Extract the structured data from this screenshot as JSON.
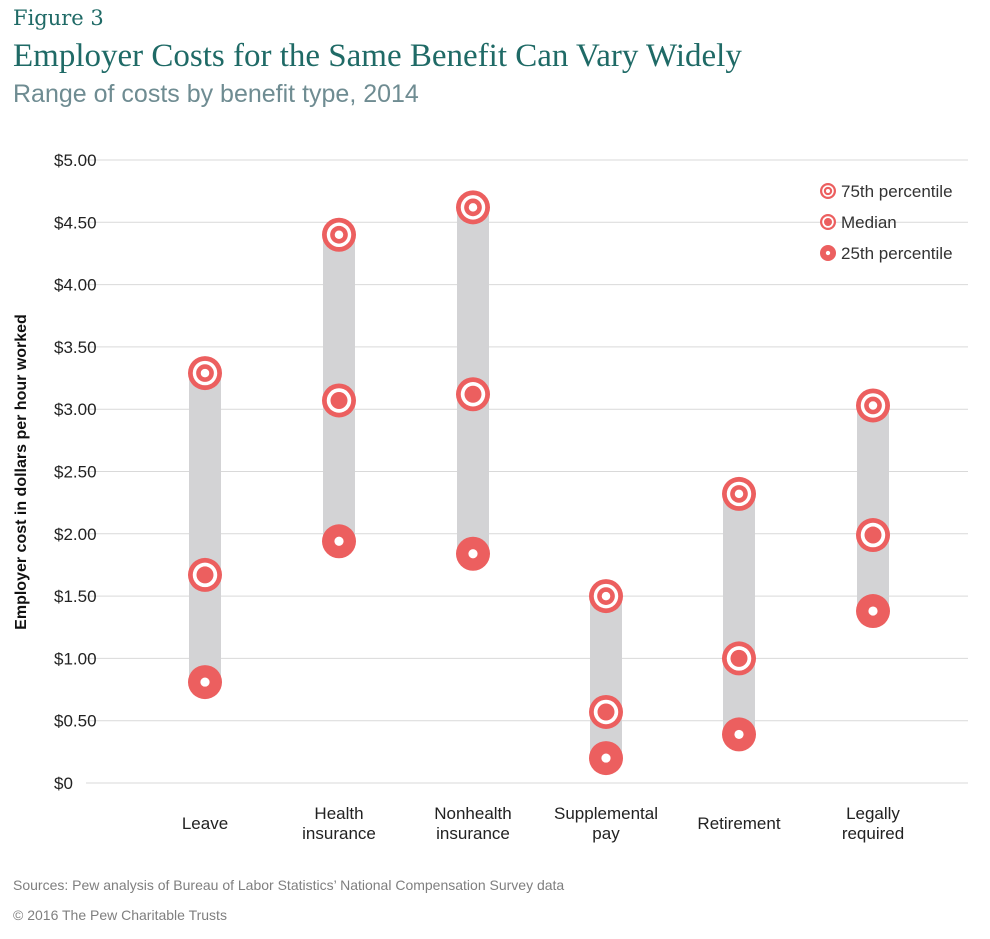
{
  "figure_label": "Figure 3",
  "title": "Employer Costs for the Same Benefit Can Vary Widely",
  "subtitle": "Range of costs by benefit type, 2014",
  "source": "Sources: Pew analysis of Bureau of Labor Statistics’ National Compensation Survey data",
  "copyright": "© 2016 The Pew Charitable Trusts",
  "colors": {
    "marker": "#ec5f5f",
    "range_bar": "#d3d3d5",
    "grid": "#d9d9d9",
    "title": "#1f6a66",
    "subtitle": "#6f8c92"
  },
  "chart_data": {
    "type": "range-dot",
    "ylabel": "Employer cost in dollars per hour worked",
    "ylim": [
      0,
      5
    ],
    "yticks": [
      0,
      0.5,
      1,
      1.5,
      2,
      2.5,
      3,
      3.5,
      4,
      4.5,
      5
    ],
    "ytick_labels": [
      "$0",
      "$0.50",
      "$1.00",
      "$1.50",
      "$2.00",
      "$2.50",
      "$3.00",
      "$3.50",
      "$4.00",
      "$4.50",
      "$5.00"
    ],
    "grid": true,
    "legend_position": "top-right",
    "categories": [
      [
        "Leave"
      ],
      [
        "Health",
        "insurance"
      ],
      [
        "Nonhealth",
        "insurance"
      ],
      [
        "Supplemental",
        "pay"
      ],
      [
        "Retirement"
      ],
      [
        "Legally",
        "required"
      ]
    ],
    "series": [
      {
        "name": "75th percentile",
        "marker": "p75",
        "values": [
          3.29,
          4.4,
          4.62,
          1.5,
          2.32,
          3.03
        ]
      },
      {
        "name": "Median",
        "marker": "median",
        "values": [
          1.67,
          3.07,
          3.12,
          0.57,
          1.0,
          1.99
        ]
      },
      {
        "name": "25th percentile",
        "marker": "p25",
        "values": [
          0.81,
          1.94,
          1.84,
          0.2,
          0.39,
          1.38
        ]
      }
    ]
  }
}
